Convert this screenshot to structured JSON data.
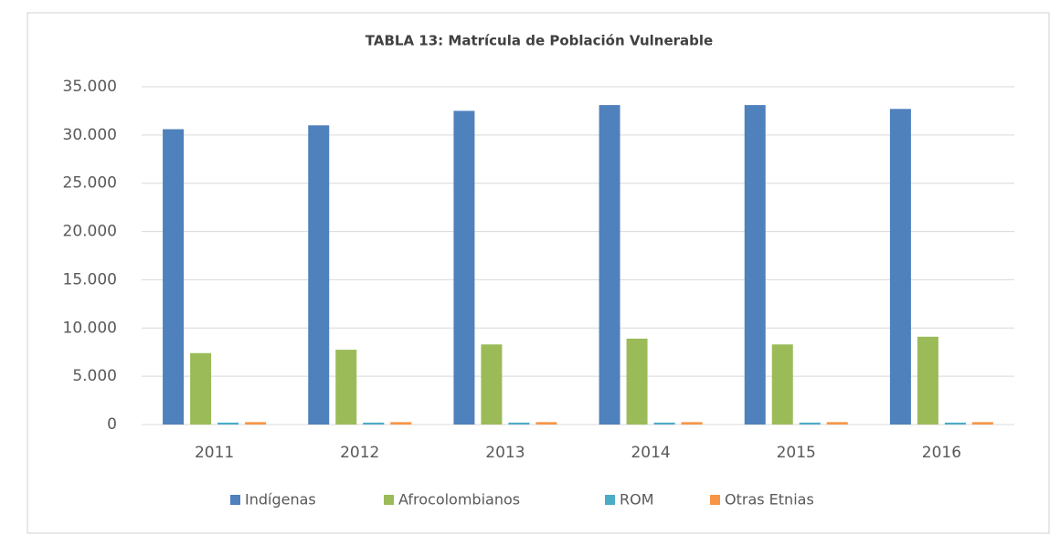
{
  "chart_data": {
    "type": "bar",
    "title": "TABLA 13: Matrícula de Población Vulnerable",
    "categories": [
      "2011",
      "2012",
      "2013",
      "2014",
      "2015",
      "2016"
    ],
    "series": [
      {
        "name": "Indígenas",
        "color": "#4f81bd",
        "values": [
          30600,
          31000,
          32500,
          33100,
          33100,
          32700
        ]
      },
      {
        "name": "Afrocolombianos",
        "color": "#9bbb59",
        "values": [
          7400,
          7750,
          8300,
          8900,
          8300,
          9100
        ]
      },
      {
        "name": "ROM",
        "color": "#4bacc6",
        "values": [
          200,
          200,
          200,
          200,
          200,
          200
        ]
      },
      {
        "name": "Otras Etnias",
        "color": "#f79646",
        "values": [
          250,
          250,
          250,
          250,
          250,
          250
        ]
      }
    ],
    "ylim": [
      0,
      35000
    ],
    "yticks": [
      0,
      {
        "value": 5000,
        "label": "5.000"
      },
      {
        "value": 10000,
        "label": "10.000"
      },
      {
        "value": 15000,
        "label": "15.000"
      },
      {
        "value": 20000,
        "label": "20.000"
      },
      {
        "value": 25000,
        "label": "25.000"
      },
      {
        "value": 30000,
        "label": "30.000"
      },
      {
        "value": 35000,
        "label": "35.000"
      }
    ],
    "grid": true,
    "legend": "bottom"
  }
}
